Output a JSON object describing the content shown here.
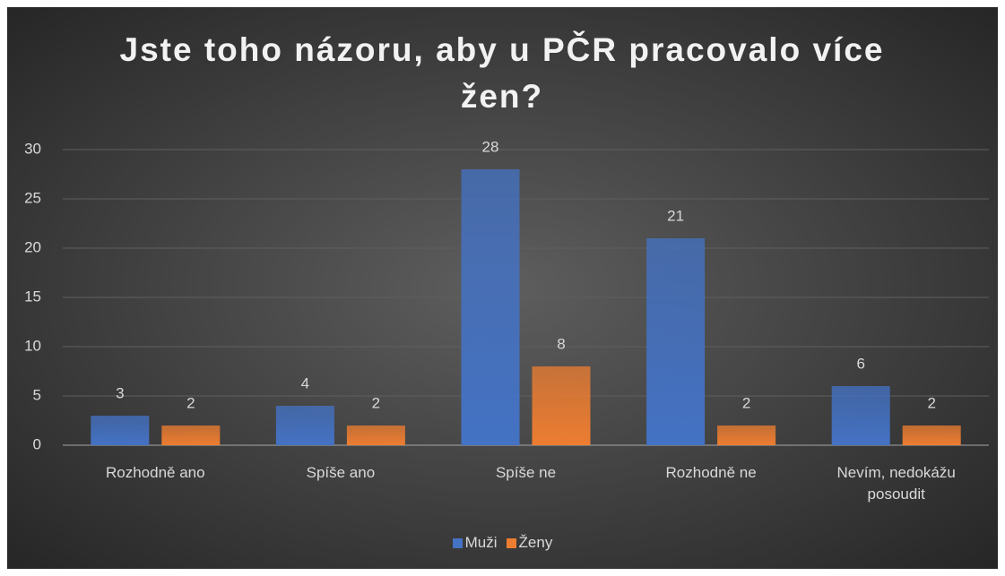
{
  "chart_data": {
    "type": "bar",
    "title": "Jste toho názoru, aby u PČR pracovalo více žen?",
    "categories": [
      "Rozhodně ano",
      "Spíše ano",
      "Spíše ne",
      "Rozhodně ne",
      "Nevím, nedokážu posoudit"
    ],
    "series": [
      {
        "name": "Muži",
        "color": "#4472c4",
        "values": [
          3,
          4,
          28,
          21,
          6
        ]
      },
      {
        "name": "Ženy",
        "color": "#ed7d31",
        "values": [
          2,
          2,
          8,
          2,
          2
        ]
      }
    ],
    "ylim": [
      0,
      30
    ],
    "yticks": [
      0,
      5,
      10,
      15,
      20,
      25,
      30
    ],
    "grid": true,
    "legend": "bottom"
  }
}
